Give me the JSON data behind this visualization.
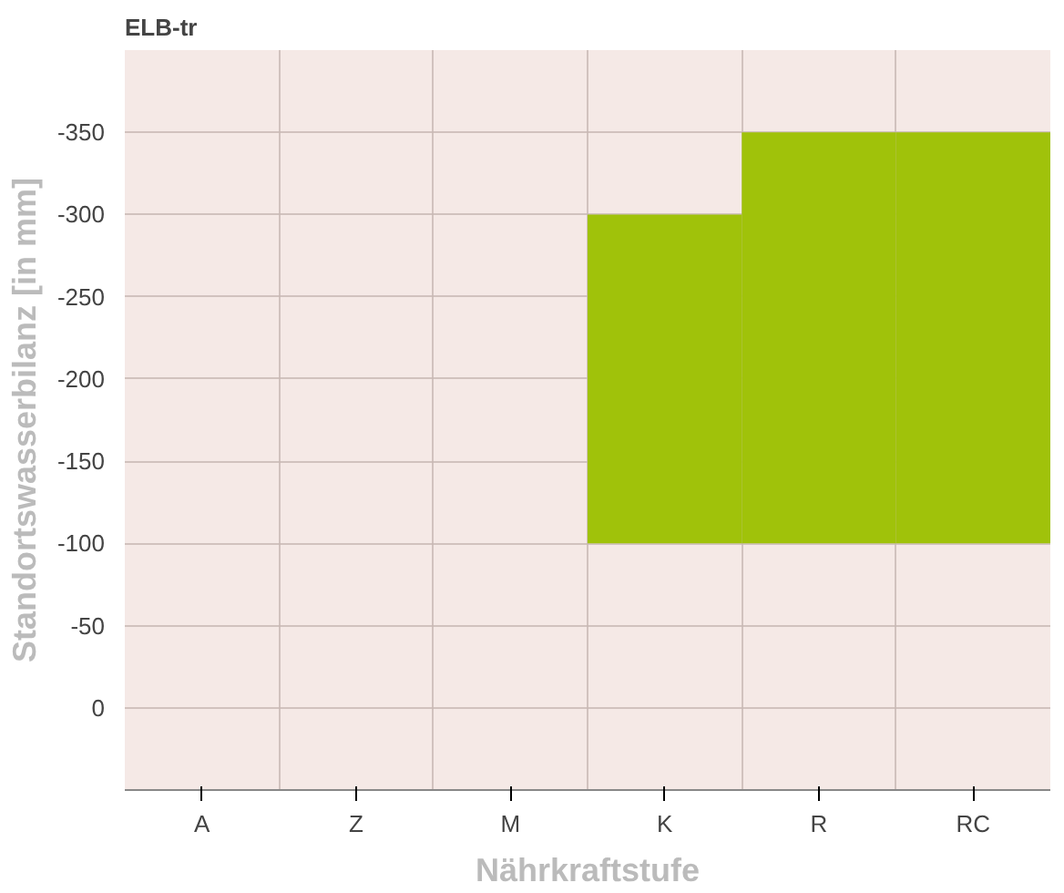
{
  "chart_data": {
    "type": "bar",
    "title": "ELB-tr",
    "xlabel": "Nährkraftstufe",
    "ylabel": "Standortswasserbilanz [in mm]",
    "categories": [
      "A",
      "Z",
      "M",
      "K",
      "R",
      "RC"
    ],
    "values": [
      null,
      null,
      null,
      -200,
      -250,
      -250
    ],
    "base": [
      null,
      null,
      null,
      -100,
      -100,
      -100
    ],
    "color": "#a0c20a",
    "ylim": [
      50,
      -400
    ],
    "yticks": [
      0,
      -50,
      -100,
      -150,
      -200,
      -250,
      -300,
      -350
    ],
    "grid": true
  }
}
